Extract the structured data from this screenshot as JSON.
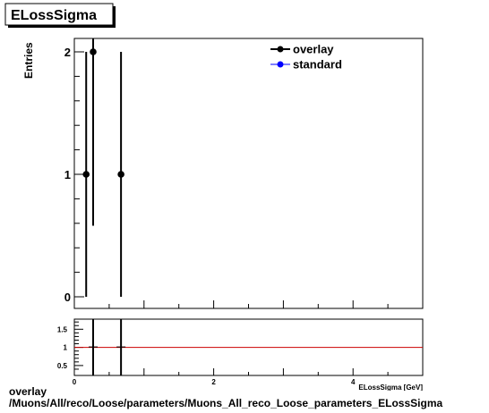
{
  "title": "ELossSigma",
  "chart_data": [
    {
      "type": "scatter",
      "panel": "main",
      "ylabel": "Entries",
      "xlabel": "ELossSigma [GeV]",
      "xlim": [
        0,
        5
      ],
      "ylim": [
        0,
        2
      ],
      "yticks": [
        "0",
        "1",
        "2"
      ],
      "legend": {
        "placement": "top-right",
        "entries": [
          "overlay",
          "standard"
        ]
      },
      "series": [
        {
          "name": "overlay",
          "color": "#000000",
          "points": [
            {
              "x": 0.17,
              "y": 1,
              "ylow": 0,
              "yhigh": 2
            },
            {
              "x": 0.27,
              "y": 2,
              "ylow": 0.58,
              "yhigh": 3
            },
            {
              "x": 0.67,
              "y": 1,
              "ylow": 0,
              "yhigh": 2
            }
          ]
        },
        {
          "name": "standard",
          "color": "#0000ff",
          "points": []
        }
      ]
    },
    {
      "type": "line",
      "panel": "ratio",
      "xlim": [
        0,
        5
      ],
      "ylim": [
        0.3,
        1.7
      ],
      "xticks": [
        "0",
        "2",
        "4"
      ],
      "yticks": [
        "0.5",
        "1",
        "1.5"
      ],
      "reference_line": {
        "y": 1,
        "color": "#cc0000"
      },
      "vertical_bars": [
        0.27,
        0.67
      ]
    }
  ],
  "caption": {
    "line1": "overlay",
    "line2": "/Muons/All/reco/Loose/parameters/Muons_All_reco_Loose_parameters_ELossSigma"
  }
}
